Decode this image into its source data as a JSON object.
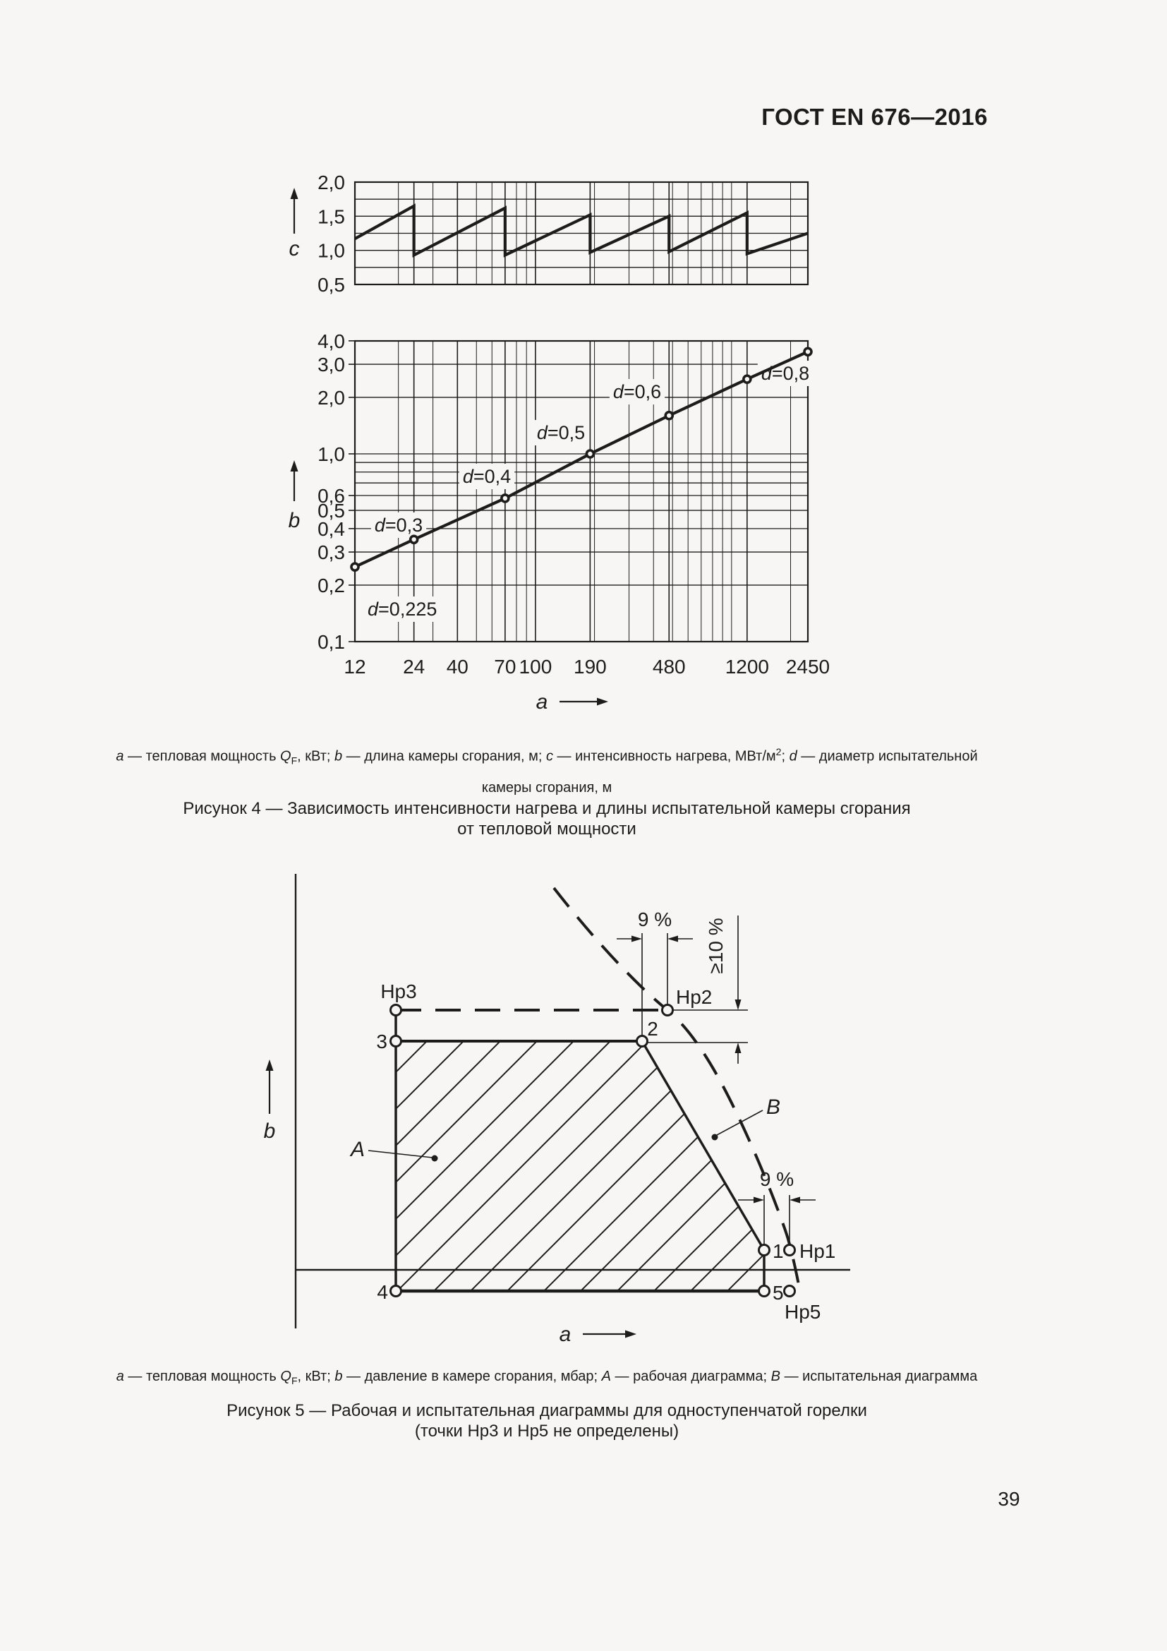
{
  "page": {
    "header": "ГОСТ EN 676—2016",
    "page_number": "39",
    "bg": "#f7f6f4",
    "ink": "#1c1c1c"
  },
  "chart_data": [
    {
      "id": "fig4-top",
      "type": "line",
      "description": "Интенсивность нагрева c в зависимости от тепловой мощности a (пилообразная кривая)",
      "x_axis": {
        "label": "a",
        "scale": "log",
        "min": 12,
        "max": 2450,
        "ticks": [
          12,
          24,
          40,
          70,
          100,
          190,
          480,
          1200,
          2450
        ],
        "tick_labels": [
          "12",
          "24",
          "40",
          "70",
          "100",
          "190",
          "480",
          "1200",
          "2450"
        ],
        "minor_grid": [
          20,
          30,
          50,
          60,
          80,
          90,
          200,
          300,
          400,
          500,
          600,
          700,
          800,
          900,
          1000,
          2000
        ]
      },
      "y_axis": {
        "label": "c",
        "scale": "linear",
        "min": 0.5,
        "max": 2.0,
        "grid": [
          0.5,
          0.75,
          1.0,
          1.25,
          1.5,
          1.75,
          2.0
        ],
        "ticks": [
          {
            "v": 2.0,
            "label": "2,0"
          },
          {
            "v": 1.5,
            "label": "1,5"
          },
          {
            "v": 1.0,
            "label": "1,0"
          },
          {
            "v": 0.5,
            "label": "0,5"
          }
        ]
      },
      "series": [
        {
          "name": "heating-intensity-sawtooth",
          "points": [
            [
              12,
              1.17
            ],
            [
              24,
              1.65
            ],
            [
              24,
              0.93
            ],
            [
              70,
              1.62
            ],
            [
              70,
              0.93
            ],
            [
              190,
              1.52
            ],
            [
              190,
              0.97
            ],
            [
              480,
              1.5
            ],
            [
              480,
              0.98
            ],
            [
              1200,
              1.55
            ],
            [
              1200,
              0.95
            ],
            [
              2450,
              1.25
            ]
          ]
        }
      ],
      "grid": "on",
      "legend": "none"
    },
    {
      "id": "fig4-bottom",
      "type": "line",
      "description": "Длина камеры сгорания b в зависимости от тепловой мощности a; точки соответствуют диаметрам d испытательной камеры",
      "x_axis": {
        "label": "a",
        "scale": "log",
        "min": 12,
        "max": 2450,
        "ticks": [
          12,
          24,
          40,
          70,
          100,
          190,
          480,
          1200,
          2450
        ],
        "tick_labels": [
          "12",
          "24",
          "40",
          "70",
          "100",
          "190",
          "480",
          "1200",
          "2450"
        ],
        "minor_grid": [
          20,
          30,
          50,
          60,
          80,
          90,
          200,
          300,
          400,
          500,
          600,
          700,
          800,
          900,
          1000,
          2000
        ]
      },
      "y_axis": {
        "label": "b",
        "scale": "log",
        "min": 0.1,
        "max": 4.0,
        "grid": [
          0.1,
          0.2,
          0.3,
          0.4,
          0.5,
          0.6,
          0.7,
          0.8,
          0.9,
          1.0,
          2.0,
          3.0,
          4.0
        ],
        "ticks": [
          {
            "v": 4.0,
            "label": "4,0"
          },
          {
            "v": 3.0,
            "label": "3,0"
          },
          {
            "v": 2.0,
            "label": "2,0"
          },
          {
            "v": 1.0,
            "label": "1,0"
          },
          {
            "v": 0.6,
            "label": "0,6"
          },
          {
            "v": 0.5,
            "label": "0,5"
          },
          {
            "v": 0.4,
            "label": "0,4"
          },
          {
            "v": 0.3,
            "label": "0,3"
          },
          {
            "v": 0.2,
            "label": "0,2"
          },
          {
            "v": 0.1,
            "label": "0,1"
          }
        ]
      },
      "series": [
        {
          "name": "chamber-length",
          "points": [
            {
              "x": 12,
              "y": 0.25,
              "label": "d=0,225"
            },
            {
              "x": 24,
              "y": 0.35,
              "label": "d=0,3"
            },
            {
              "x": 70,
              "y": 0.58,
              "label": "d=0,4"
            },
            {
              "x": 190,
              "y": 1.0,
              "label": "d=0,5"
            },
            {
              "x": 480,
              "y": 1.6,
              "label": "d=0,6"
            },
            {
              "x": 1200,
              "y": 2.5,
              "label": "d=0,8"
            },
            {
              "x": 2450,
              "y": 3.5,
              "label": null
            }
          ]
        }
      ],
      "grid": "on",
      "legend": "none"
    }
  ],
  "figure4": {
    "caption_legend_line1": [
      {
        "t": "a",
        "i": 1
      },
      {
        "t": " — тепловая мощность "
      },
      {
        "t": "Q",
        "i": 1
      },
      {
        "t": "F",
        "sub": 1
      },
      {
        "t": ", кВт; "
      },
      {
        "t": "b",
        "i": 1
      },
      {
        "t": " — длина камеры сгорания, м; "
      },
      {
        "t": "c",
        "i": 1
      },
      {
        "t": " — интенсивность нагрева, МВт/м"
      },
      {
        "t": "2",
        "sup": 1
      },
      {
        "t": "; "
      },
      {
        "t": "d",
        "i": 1
      },
      {
        "t": " — диаметр испытательной"
      }
    ],
    "caption_legend_line2": "камеры сгорания, м",
    "caption_title_line1": "Рисунок 4 — Зависимость интенсивности нагрева и длины испытательной камеры сгорания",
    "caption_title_line2": "от тепловой мощности"
  },
  "figure5": {
    "axis_labels": {
      "x": "a",
      "y": "b"
    },
    "point_labels": {
      "Hp3": "Hp3",
      "p3": "3",
      "p2": "2",
      "Hp2": "Hp2",
      "p1": "1",
      "Hp1": "Hp1",
      "p4": "4",
      "p5": "5",
      "Hp5": "Hp5"
    },
    "region_labels": {
      "A": "A",
      "B": "B"
    },
    "annotations": {
      "pct_top": "9 %",
      "pct_bottom": "9 %",
      "pct_right": "≥10 %"
    },
    "caption_legend_line1": [
      {
        "t": "a",
        "i": 1
      },
      {
        "t": " — тепловая мощность "
      },
      {
        "t": "Q",
        "i": 1
      },
      {
        "t": "F",
        "sub": 1
      },
      {
        "t": ", кВт; "
      },
      {
        "t": "b",
        "i": 1
      },
      {
        "t": " — давление в камере сгорания, мбар; "
      },
      {
        "t": "A",
        "i": 1
      },
      {
        "t": " — рабочая диаграмма; "
      },
      {
        "t": "B",
        "i": 1
      },
      {
        "t": " — испытательная диаграмма"
      }
    ],
    "caption_title_line1": "Рисунок 5 — Рабочая и испытательная диаграммы для одноступенчатой горелки",
    "caption_title_line2": "(точки Hp3 и Hp5 не определены)"
  }
}
